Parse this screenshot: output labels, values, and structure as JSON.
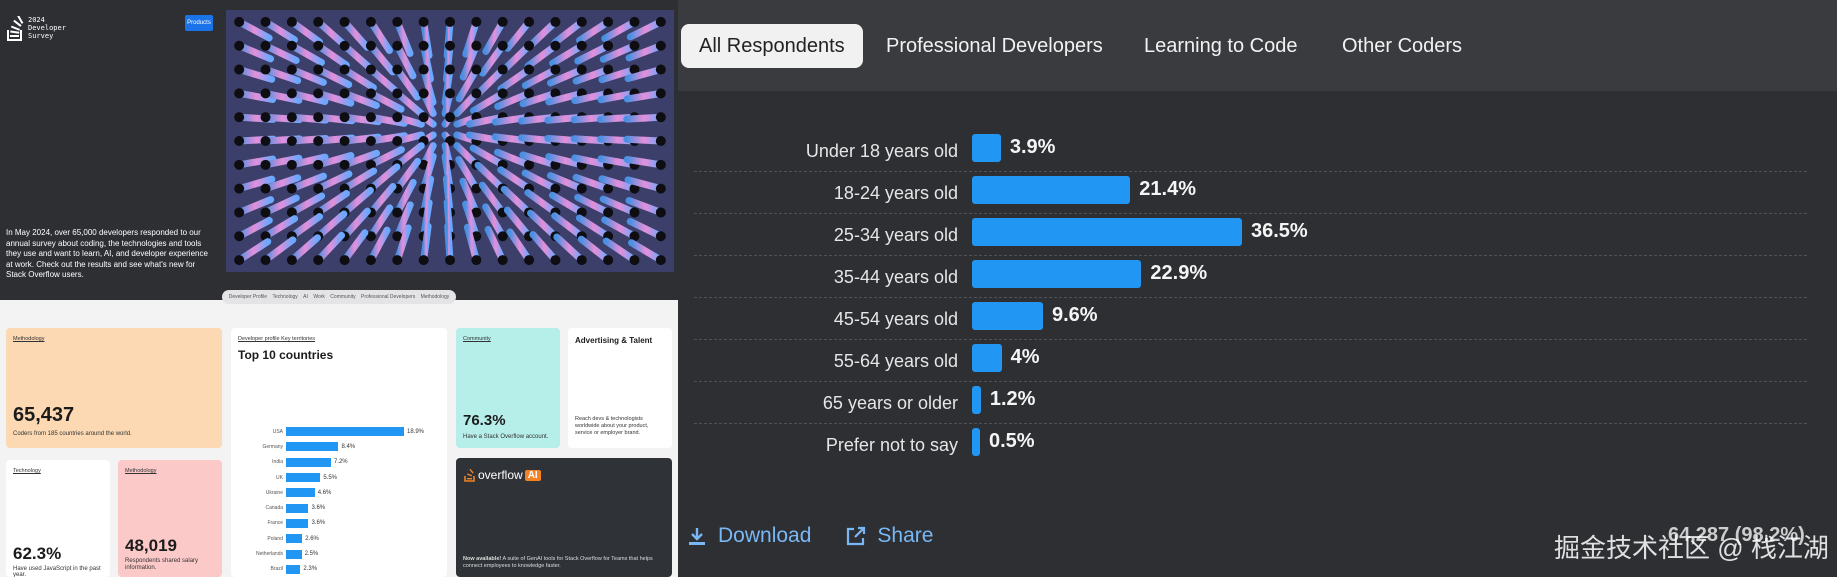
{
  "left": {
    "logo_text": [
      "2024",
      "Developer",
      "Survey"
    ],
    "products_label": "Products",
    "hero_text": "In May 2024, over 65,000 developers responded to our annual survey about coding, the technologies and tools they use and want to learn, AI, and developer experience at work. Check out the results and see what's new for Stack Overflow users.",
    "subnav": [
      "Developer Profile",
      "Technology",
      "AI",
      "Work",
      "Community",
      "Professional Developers",
      "Methodology"
    ],
    "cards": {
      "methodology": {
        "tag": "Methodology",
        "value": "65,437",
        "text": "Coders from 185 countries around the world."
      },
      "technology": {
        "tag": "Technology",
        "value": "62.3%",
        "text": "Have used JavaScript in the past year."
      },
      "salary": {
        "tag": "Methodology",
        "value": "48,019",
        "text": "Respondents shared salary information."
      },
      "countries": {
        "tag1": "Developer profile",
        "tag2": "Key territories",
        "title": "Top 10 countries"
      },
      "community": {
        "tag": "Community",
        "value": "76.3%",
        "text": "Have a Stack Overflow account."
      },
      "advertising": {
        "title": "Advertising & Talent",
        "text": "Reach devs & technologists worldwide about your product, service or employer brand."
      },
      "overflow_ai": {
        "word": "overflow",
        "badge": "AI",
        "lead": "Now available!",
        "text": " A suite of GenAI tools for Stack Overflow for Teams that helps connect employees to knowledge faster."
      }
    },
    "countries": [
      {
        "name": "USA",
        "value": 18.9,
        "label": "18.9%"
      },
      {
        "name": "Germany",
        "value": 8.4,
        "label": "8.4%"
      },
      {
        "name": "India",
        "value": 7.2,
        "label": "7.2%"
      },
      {
        "name": "UK",
        "value": 5.5,
        "label": "5.5%"
      },
      {
        "name": "Ukraine",
        "value": 4.6,
        "label": "4.6%"
      },
      {
        "name": "Canada",
        "value": 3.6,
        "label": "3.6%"
      },
      {
        "name": "France",
        "value": 3.6,
        "label": "3.6%"
      },
      {
        "name": "Poland",
        "value": 2.6,
        "label": "2.6%"
      },
      {
        "name": "Netherlands",
        "value": 2.5,
        "label": "2.5%"
      },
      {
        "name": "Brazil",
        "value": 2.3,
        "label": "2.3%"
      }
    ]
  },
  "tabs": [
    "All Respondents",
    "Professional Developers",
    "Learning to Code",
    "Other Coders"
  ],
  "active_tab": 0,
  "chart_data": {
    "type": "bar",
    "orientation": "horizontal",
    "categories": [
      "Under 18 years old",
      "18-24 years old",
      "25-34 years old",
      "35-44 years old",
      "45-54 years old",
      "55-64 years old",
      "65 years or older",
      "Prefer not to say"
    ],
    "values": [
      3.9,
      21.4,
      36.5,
      22.9,
      9.6,
      4,
      1.2,
      0.5
    ],
    "value_labels": [
      "3.9%",
      "21.4%",
      "36.5%",
      "22.9%",
      "9.6%",
      "4%",
      "1.2%",
      "0.5%"
    ],
    "bar_color": "#2196f3"
  },
  "actions": {
    "download": "Download",
    "share": "Share"
  },
  "watermark": {
    "text": "掘金技术社区 @ 栈江湖",
    "behind": "64,287 (98.2%)"
  },
  "colors": {
    "accent": "#2196f3",
    "link": "#7ab8f5",
    "bg_dark": "#2d2f33",
    "tabbar": "#393b3f"
  }
}
